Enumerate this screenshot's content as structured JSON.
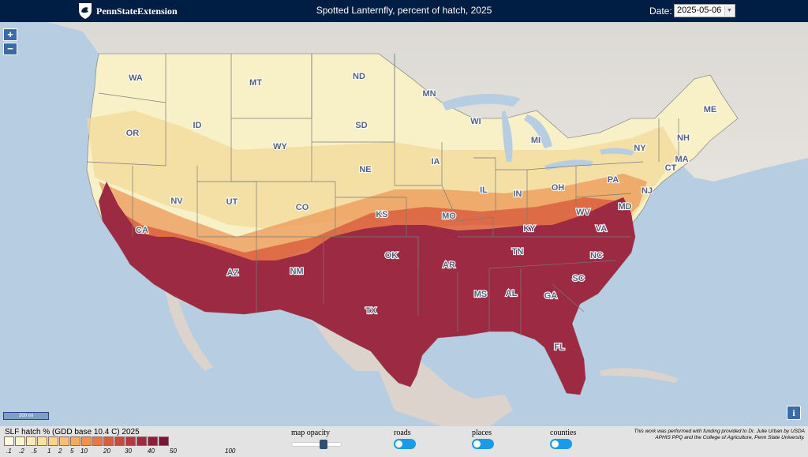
{
  "header": {
    "logo_text": "PennStateExtension",
    "title": "Spotted Lanternfly, percent of hatch, 2025",
    "date_label": "Date:",
    "date_value": "2025-05-06"
  },
  "zoom": {
    "in_label": "+",
    "out_label": "−"
  },
  "scale_bar": {
    "label": "200 mi"
  },
  "info_button": {
    "label": "i"
  },
  "legend": {
    "title": "SLF hatch % (GDD base 10.4 C) 2025",
    "colors": [
      "#fffbe0",
      "#fef5c9",
      "#feecb0",
      "#fde29a",
      "#fcd385",
      "#fbc06f",
      "#f9a95a",
      "#f4904a",
      "#ea7640",
      "#dc5d3c",
      "#cc4a3c",
      "#b8393d",
      "#a2293f",
      "#8e1d3e",
      "#7c153a"
    ],
    "tick_labels": [
      ".1",
      ".2",
      ".5",
      "1",
      "2",
      "5",
      "10",
      "20",
      "30",
      "40",
      "50",
      "100"
    ]
  },
  "controls": {
    "opacity_label": "map opacity",
    "opacity_value": 0.7,
    "toggles": [
      {
        "label": "roads",
        "on": true
      },
      {
        "label": "places",
        "on": true
      },
      {
        "label": "counties",
        "on": true
      }
    ]
  },
  "credit": "This work was performed with funding provided to Dr. Julie Urban by USDA APHIS PPQ and the College of Agriculture, Penn State University.",
  "map": {
    "hatch_colors": {
      "none": "#f8f1c8",
      "low": "#f3d89a",
      "mid": "#ec9e5e",
      "high": "#d9603f",
      "full": "#9c2a42"
    },
    "states": [
      "WA",
      "MT",
      "ND",
      "MN",
      "ME",
      "OR",
      "ID",
      "SD",
      "WI",
      "MI",
      "NY",
      "NH",
      "WY",
      "IA",
      "MA",
      "NE",
      "CT",
      "CA",
      "NV",
      "UT",
      "CO",
      "IL",
      "IN",
      "OH",
      "PA",
      "NJ",
      "KS",
      "MO",
      "WV",
      "MD",
      "KY",
      "VA",
      "OK",
      "AR",
      "TN",
      "NC",
      "AZ",
      "NM",
      "SC",
      "MS",
      "AL",
      "GA",
      "TX",
      "FL"
    ]
  }
}
